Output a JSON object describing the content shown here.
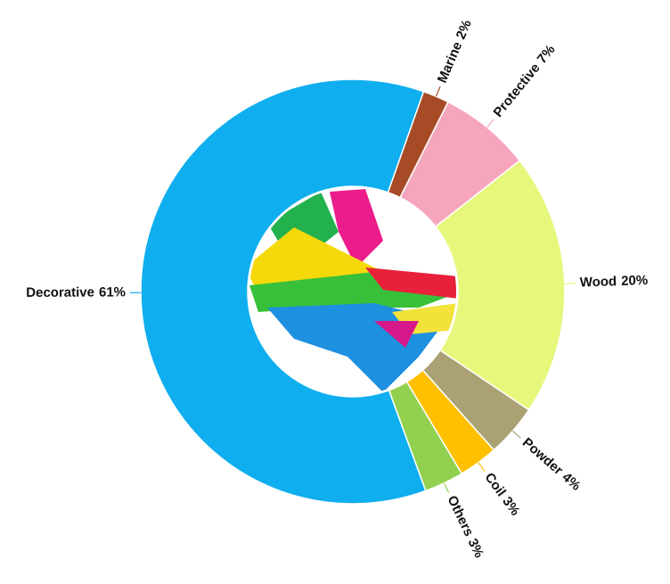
{
  "chart_data": {
    "type": "pie",
    "categories": [
      "Marine",
      "Protective",
      "Wood",
      "Powder",
      "Coil",
      "Others",
      "Decorative"
    ],
    "values": [
      2,
      7,
      20,
      4,
      3,
      3,
      61
    ],
    "value_labels": [
      "2%",
      "7%",
      "20%",
      "4%",
      "3%",
      "3%",
      "61%"
    ],
    "colors": [
      "#a64b26",
      "#f6a5bd",
      "#e6f77c",
      "#aaa274",
      "#ffc000",
      "#92d050",
      "#0eaeef"
    ]
  }
}
